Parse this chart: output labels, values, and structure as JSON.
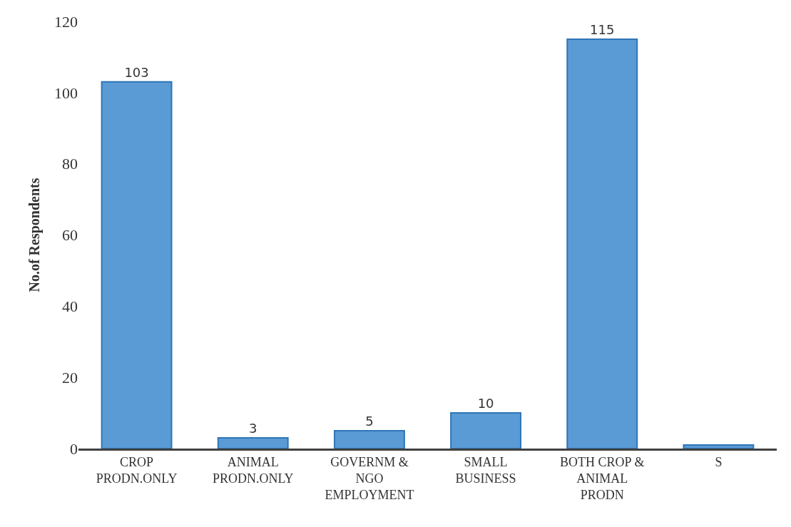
{
  "chart_data": {
    "type": "bar",
    "ylabel": "No.of Respondents",
    "categories": [
      "CROP\nPRODN.ONLY",
      "ANIMAL\nPRODN.ONLY",
      "GOVERNM &\nNGO\nEMPLOYMENT",
      "SMALL\nBUSINESS",
      "BOTH CROP &\nANIMAL\nPRODN",
      "S"
    ],
    "values": [
      103,
      3,
      5,
      10,
      115,
      1
    ],
    "value_labels": [
      "103",
      "3",
      "5",
      "10",
      "115",
      null
    ],
    "color": "#5b9bd5",
    "ylim": [
      0,
      120
    ],
    "yticks": [
      0,
      20,
      40,
      60,
      80,
      100,
      120
    ]
  }
}
